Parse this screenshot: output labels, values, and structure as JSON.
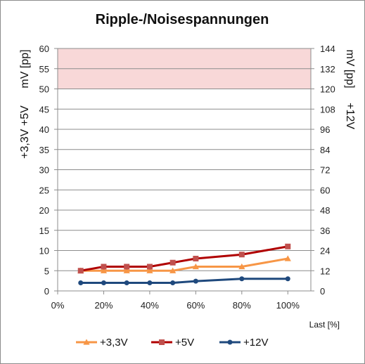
{
  "chart_data": {
    "type": "line",
    "title": "Ripple-/Noisespannungen",
    "xlabel": "Last [%]",
    "ylabel_left": "+3,3V +5V",
    "ylabel_left_unit": "mV [pp]",
    "ylabel_right": "+12V",
    "ylabel_right_unit": "mV [pp]",
    "x_ticks": [
      "0%",
      "20%",
      "40%",
      "60%",
      "80%",
      "100%"
    ],
    "xlim": [
      0,
      110
    ],
    "ylim_left": [
      0,
      60
    ],
    "ylim_right": [
      0,
      144
    ],
    "y_ticks_left": [
      "0",
      "5",
      "10",
      "15",
      "20",
      "25",
      "30",
      "35",
      "40",
      "45",
      "50",
      "55",
      "60"
    ],
    "y_ticks_right": [
      "0",
      "12",
      "24",
      "36",
      "48",
      "60",
      "72",
      "84",
      "96",
      "108",
      "120",
      "132",
      "144"
    ],
    "limit_band_left": [
      50,
      60
    ],
    "grid": true,
    "legend_position": "bottom",
    "series": [
      {
        "name": "+3,3V",
        "axis": "left",
        "color": "#F79646",
        "marker": "triangle",
        "x": [
          10,
          20,
          30,
          40,
          50,
          60,
          80,
          100
        ],
        "values": [
          5,
          5,
          5,
          5,
          5,
          6,
          6,
          8
        ]
      },
      {
        "name": "+5V",
        "axis": "left",
        "color": "#C0504D",
        "line_color": "#B00000",
        "marker": "square",
        "x": [
          10,
          20,
          30,
          40,
          50,
          60,
          80,
          100
        ],
        "values": [
          5,
          6,
          6,
          6,
          7,
          8,
          9,
          11
        ]
      },
      {
        "name": "+12V",
        "axis": "right",
        "color": "#1F497D",
        "marker": "circle",
        "x": [
          10,
          20,
          30,
          40,
          50,
          60,
          80,
          100
        ],
        "values": [
          4.8,
          4.8,
          4.8,
          4.8,
          4.8,
          5.8,
          7.2,
          7.2
        ]
      }
    ],
    "colors": {
      "band": "#F8D8D8",
      "grid": "#8c8c8c"
    }
  }
}
